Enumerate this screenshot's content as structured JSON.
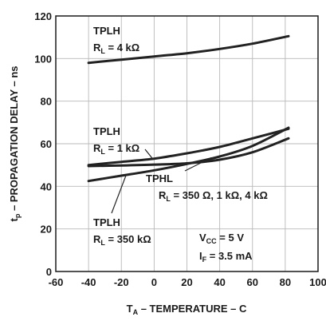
{
  "chart_data": {
    "type": "line",
    "xlabel": {
      "main": "T",
      "sub": "A",
      "rest": " – TEMPERATURE – C"
    },
    "ylabel": {
      "main": "t",
      "sub": "p",
      "rest": " – PROPAGATION DELAY – ns"
    },
    "xlim": [
      -60,
      100
    ],
    "ylim": [
      0,
      120
    ],
    "x_ticks": [
      "-60",
      "-40",
      "-20",
      "0",
      "20",
      "40",
      "60",
      "80",
      "100"
    ],
    "y_ticks": [
      "0",
      "20",
      "40",
      "60",
      "80",
      "100",
      "120"
    ],
    "grid": true,
    "series": [
      {
        "name": "TPLH R_L = 4 kΩ",
        "x": [
          -40,
          -20,
          0,
          20,
          40,
          60,
          82
        ],
        "y": [
          98,
          99.5,
          101,
          102.5,
          104.5,
          107,
          110.5
        ]
      },
      {
        "name": "TPLH R_L = 1 kΩ",
        "x": [
          -40,
          -20,
          0,
          20,
          40,
          60,
          82
        ],
        "y": [
          50,
          51.5,
          53,
          55.5,
          58.5,
          62.5,
          67
        ]
      },
      {
        "name": "TPLH R_L = 350 kΩ",
        "x": [
          -40,
          -20,
          0,
          20,
          40,
          60,
          82
        ],
        "y": [
          42.5,
          45,
          47.5,
          50.5,
          54,
          59,
          67.5
        ]
      },
      {
        "name": "TPHL R_L = 350 Ω, 1 kΩ, 4 kΩ",
        "x": [
          -40,
          -20,
          0,
          20,
          40,
          60,
          82
        ],
        "y": [
          49.5,
          49.8,
          50.2,
          50.8,
          52.5,
          56,
          62.5
        ]
      }
    ],
    "annotations": {
      "tplh_4k": {
        "title": "TPLH",
        "rl": "R",
        "rl_sub": "L",
        "rl_val": " = 4 kΩ"
      },
      "tplh_1k": {
        "title": "TPLH",
        "rl": "R",
        "rl_sub": "L",
        "rl_val": " = 1 kΩ"
      },
      "tphl": {
        "title": "TPHL",
        "rl": "R",
        "rl_sub": "L",
        "rl_val": " = 350 Ω, 1 kΩ, 4 kΩ"
      },
      "tplh_350k": {
        "title": "TPLH",
        "rl": "R",
        "rl_sub": "L",
        "rl_val": " = 350 kΩ"
      },
      "vcc": {
        "main": "V",
        "sub": "CC",
        "rest": " = 5 V"
      },
      "if": {
        "main": "I",
        "sub": "F",
        "rest": " = 3.5 mA"
      }
    }
  }
}
